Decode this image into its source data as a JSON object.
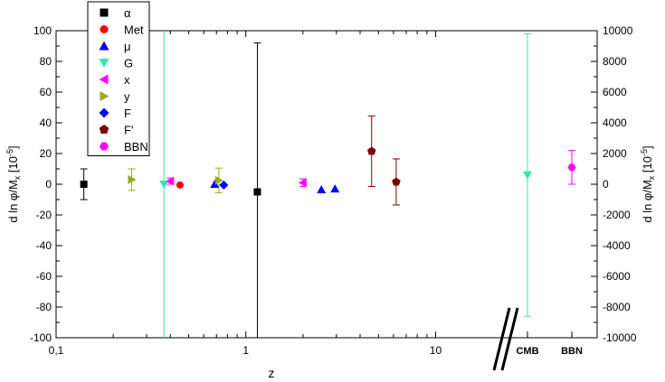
{
  "chart_data": {
    "type": "scatter",
    "xlabel": "z",
    "ylabel_left": {
      "base": "d ln φ/M",
      "sub": "x",
      "mid": " [10",
      "sup": "-5",
      "end": "]"
    },
    "ylabel_right": {
      "base": "d ln φ/M",
      "sub": "x",
      "mid": " [10",
      "sup": "-5",
      "end": "]"
    },
    "x_scale": "log",
    "xlim": [
      0.1,
      18
    ],
    "x_ticks": [
      {
        "value": 0.1,
        "label": "0,1"
      },
      {
        "value": 1,
        "label": "1"
      },
      {
        "value": 10,
        "label": "10"
      }
    ],
    "x_minor_ticks": [
      0.2,
      0.3,
      0.4,
      0.5,
      0.6,
      0.7,
      0.8,
      0.9,
      2,
      3,
      4,
      5,
      6,
      7,
      8,
      9
    ],
    "special_categories": [
      {
        "label": "CMB",
        "z": "CMB"
      },
      {
        "label": "BBN",
        "z": "BBN"
      }
    ],
    "axis_break": "between 10 and CMB",
    "ylim_left": [
      -100,
      100
    ],
    "y_ticks_left": [
      -100,
      -80,
      -60,
      -40,
      -20,
      0,
      20,
      40,
      60,
      80,
      100
    ],
    "ylim_right": [
      -10000,
      10000
    ],
    "y_ticks_right": [
      -10000,
      -8000,
      -6000,
      -4000,
      -2000,
      0,
      2000,
      4000,
      6000,
      8000,
      10000
    ],
    "grid": false,
    "legend_position": "top-left",
    "series": [
      {
        "name": "α",
        "color": "#000000",
        "marker": "square",
        "points": [
          {
            "x": 0.14,
            "y": 0,
            "err": 10
          },
          {
            "x": 1.15,
            "y": -5,
            "err": 97
          }
        ]
      },
      {
        "name": "Met",
        "color": "#ff0000",
        "marker": "circle",
        "points": [
          {
            "x": 0.45,
            "y": -0.5,
            "err": 0
          }
        ]
      },
      {
        "name": "μ",
        "color": "#0000ff",
        "marker": "triangle-up",
        "points": [
          {
            "x": 0.685,
            "y": 0,
            "err": 0
          },
          {
            "x": 2.5,
            "y": -3.5,
            "err": 0
          },
          {
            "x": 2.95,
            "y": -3,
            "err": 0
          }
        ]
      },
      {
        "name": "G",
        "color": "#33e6b3",
        "marker": "triangle-down",
        "points": [
          {
            "x": 0.37,
            "y": 0,
            "err": 100,
            "clip": true
          },
          {
            "x": "CMB",
            "y": 6,
            "err": 92
          }
        ]
      },
      {
        "name": "x",
        "color": "#ff00ff",
        "marker": "triangle-left",
        "points": [
          {
            "x": 0.4,
            "y": 2,
            "err": 2
          },
          {
            "x": 2.0,
            "y": 1,
            "err": 2.5
          }
        ]
      },
      {
        "name": "y",
        "color": "#99aa22",
        "marker": "triangle-right",
        "points": [
          {
            "x": 0.25,
            "y": 3,
            "err": 7
          },
          {
            "x": 0.72,
            "y": 2.5,
            "err": 8
          }
        ]
      },
      {
        "name": "F",
        "color": "#0000ff",
        "marker": "diamond",
        "points": [
          {
            "x": 0.765,
            "y": -0.5,
            "err": 0
          }
        ]
      },
      {
        "name": "F'",
        "color": "#7a0000",
        "marker": "pentagon",
        "points": [
          {
            "x": 4.6,
            "y": 21.5,
            "err": 23
          },
          {
            "x": 6.2,
            "y": 1.5,
            "err": 15
          }
        ]
      },
      {
        "name": "BBN",
        "color": "#ff00ff",
        "marker": "hexagon",
        "points": [
          {
            "x": "BBN",
            "y": 11,
            "err": 11
          }
        ]
      }
    ]
  }
}
